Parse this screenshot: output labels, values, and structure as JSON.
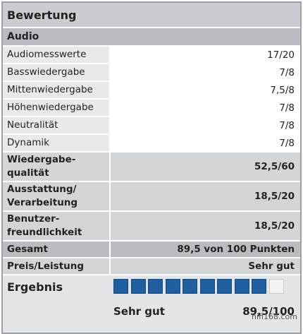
{
  "header": {
    "title": "Bewertung"
  },
  "section": "Audio",
  "rows": [
    [
      "Audiomesswerte",
      "17/20"
    ],
    [
      "Basswiedergabe",
      "7/8"
    ],
    [
      "Mittenwiedergabe",
      "7,5/8"
    ],
    [
      "Höhenwiedergabe",
      "7/8"
    ],
    [
      "Neutralität",
      "7/8"
    ],
    [
      "Dynamik",
      "7/8"
    ]
  ],
  "subtotals": [
    [
      "Wiedergabe-\nqualität",
      "52,5/60"
    ],
    [
      "Ausstattung/\nVerarbeitung",
      "18,5/20"
    ],
    [
      "Benutzer-\nfreundlichkeit",
      "18,5/20"
    ]
  ],
  "total": [
    "Gesamt",
    "89,5 von 100 Punkten"
  ],
  "price": [
    "Preis/Leistung",
    "Sehr gut"
  ],
  "result": {
    "label": "Ergebnis",
    "filled": 9,
    "total": 10,
    "verdict": "Sehr gut",
    "score": "89,5/100"
  },
  "watermark": "hifi168.com"
}
